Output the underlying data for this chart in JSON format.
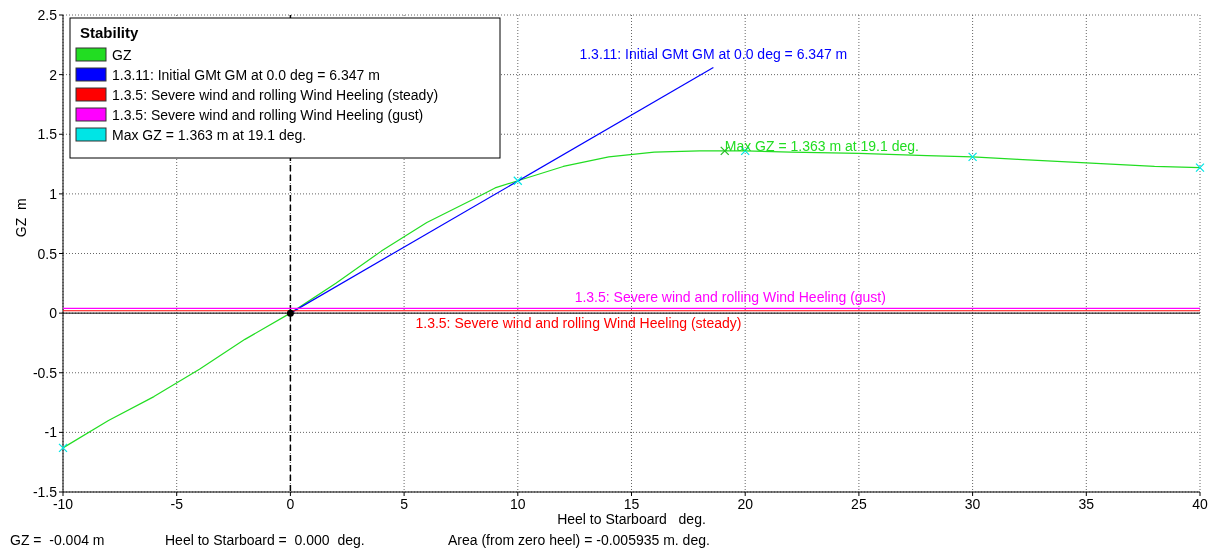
{
  "chart_data": {
    "type": "line",
    "legend_title": "Stability",
    "xlabel": "Heel to Starboard   deg.",
    "ylabel": "GZ  m",
    "xlim": [
      -10,
      40
    ],
    "xticks": [
      -10,
      -5,
      0,
      5,
      10,
      15,
      20,
      25,
      30,
      35,
      40
    ],
    "ylim": [
      -1.5,
      2.5
    ],
    "yticks": [
      -1.5,
      -1,
      -0.5,
      0,
      0.5,
      1,
      1.5,
      2,
      2.5
    ],
    "grid": true,
    "legend": "top left",
    "line_style": "solid",
    "marker": "none",
    "series": [
      {
        "name": "GZ",
        "color": "#22dd22",
        "x": [
          -10,
          -8,
          -6,
          -4,
          -2,
          0,
          2,
          4,
          5,
          6,
          8,
          9,
          10,
          12,
          14,
          16,
          18,
          19.1,
          20,
          22,
          25,
          28,
          30,
          32,
          35,
          38,
          40
        ],
        "values": [
          -1.13,
          -0.9,
          -0.7,
          -0.47,
          -0.22,
          0,
          0.25,
          0.52,
          0.64,
          0.76,
          0.95,
          1.05,
          1.11,
          1.23,
          1.31,
          1.35,
          1.36,
          1.36,
          1.36,
          1.35,
          1.34,
          1.32,
          1.31,
          1.29,
          1.26,
          1.23,
          1.22
        ]
      },
      {
        "name": "1.3.11: Initial GMt GM at 0.0 deg = 6.347 m",
        "color": "#0000ff",
        "x": [
          0,
          18.6
        ],
        "values": [
          0,
          2.06
        ]
      },
      {
        "name": "1.3.5: Severe wind and rolling Wind Heeling (steady)",
        "color": "#ff0000",
        "x": [
          -10,
          40
        ],
        "values": [
          0.02,
          0.02
        ]
      },
      {
        "name": "1.3.5: Severe wind and rolling Wind Heeling (gust)",
        "color": "#ff00ff",
        "x": [
          -10,
          40
        ],
        "values": [
          0.04,
          0.04
        ]
      },
      {
        "name": "Max GZ = 1.363 m at 19.1 deg.",
        "type": "scatter",
        "marker": "cross",
        "color": "#00e5e5",
        "x": [
          -10,
          10,
          20,
          30,
          40
        ],
        "values": [
          -1.13,
          1.11,
          1.36,
          1.31,
          1.22
        ]
      },
      {
        "type": "scatter",
        "marker": "cross",
        "color": "#22bb22",
        "x": [
          19.1
        ],
        "values": [
          1.36
        ]
      },
      {
        "type": "scatter",
        "marker": "circle",
        "color": "#000000",
        "x": [
          0
        ],
        "values": [
          0
        ]
      }
    ],
    "ref_lines": [
      {
        "axis": "x",
        "value": 0,
        "color": "#000000",
        "line_style": "dashed"
      },
      {
        "axis": "y",
        "value": 0,
        "color": "#000000"
      }
    ],
    "annotations": [
      {
        "text": "1.3.11: Initial GMt GM at 0.0 deg = 6.347 m",
        "x": 18.6,
        "y": 2.06
      },
      {
        "text": "Max GZ = 1.363 m at 19.1 deg.",
        "x": 19.1,
        "y": 1.36
      },
      {
        "text": "1.3.5: Severe wind and rolling Wind Heeling (steady)",
        "x": 5.5,
        "y": 0.02
      },
      {
        "text": "1.3.5: Severe wind and rolling Wind Heeling (gust)",
        "x": 12.5,
        "y": 0.04
      },
      "GZ =  -0.004 m",
      "Heel to Starboard =  0.000  deg.",
      "Area (from zero heel) = -0.005935 m. deg."
    ]
  }
}
